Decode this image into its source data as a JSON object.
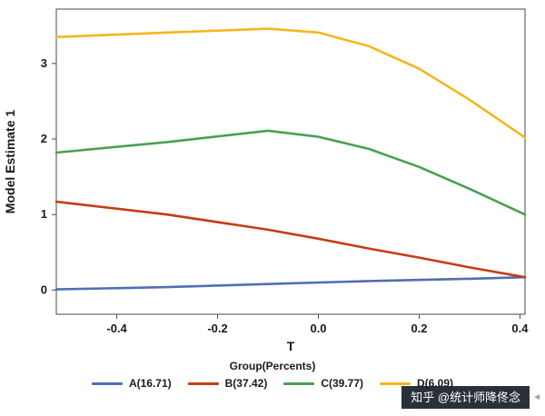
{
  "figure": {
    "ylabel": "Model Estimate 1",
    "xlabel": "T"
  },
  "legend": {
    "title": "Group(Percents)"
  },
  "watermark": {
    "text": "知乎 @统计师降佟念",
    "arrow": "◄"
  },
  "chart_data": {
    "type": "line",
    "title": "",
    "xlabel": "T",
    "ylabel": "Model Estimate 1",
    "xlim": [
      -0.52,
      0.41
    ],
    "ylim": [
      -0.32,
      3.72
    ],
    "x_ticks": [
      -0.4,
      -0.2,
      0.0,
      0.2,
      0.4
    ],
    "y_ticks": [
      0,
      1,
      2,
      3
    ],
    "grid": false,
    "legend_position": "bottom",
    "legend_title": "Group(Percents)",
    "series": [
      {
        "name": "A(16.71)",
        "color": "#4f6fb5",
        "points": [
          [
            -0.52,
            0.01
          ],
          [
            -0.3,
            0.04
          ],
          [
            -0.1,
            0.08
          ],
          [
            0.1,
            0.12
          ],
          [
            0.3,
            0.15
          ],
          [
            0.41,
            0.17
          ]
        ]
      },
      {
        "name": "B(37.42)",
        "color": "#c43d17",
        "points": [
          [
            -0.52,
            1.17
          ],
          [
            -0.3,
            1.0
          ],
          [
            -0.1,
            0.8
          ],
          [
            0.0,
            0.68
          ],
          [
            0.1,
            0.55
          ],
          [
            0.2,
            0.43
          ],
          [
            0.3,
            0.3
          ],
          [
            0.41,
            0.17
          ]
        ]
      },
      {
        "name": "C(39.77)",
        "color": "#4aa052",
        "points": [
          [
            -0.52,
            1.82
          ],
          [
            -0.3,
            1.96
          ],
          [
            -0.1,
            2.11
          ],
          [
            0.0,
            2.03
          ],
          [
            0.1,
            1.87
          ],
          [
            0.2,
            1.63
          ],
          [
            0.3,
            1.34
          ],
          [
            0.41,
            1.0
          ]
        ]
      },
      {
        "name": "D(6.09)",
        "color": "#f3b71b",
        "points": [
          [
            -0.52,
            3.35
          ],
          [
            -0.3,
            3.41
          ],
          [
            -0.1,
            3.46
          ],
          [
            0.0,
            3.41
          ],
          [
            0.1,
            3.23
          ],
          [
            0.2,
            2.93
          ],
          [
            0.3,
            2.52
          ],
          [
            0.41,
            2.02
          ]
        ]
      }
    ]
  }
}
